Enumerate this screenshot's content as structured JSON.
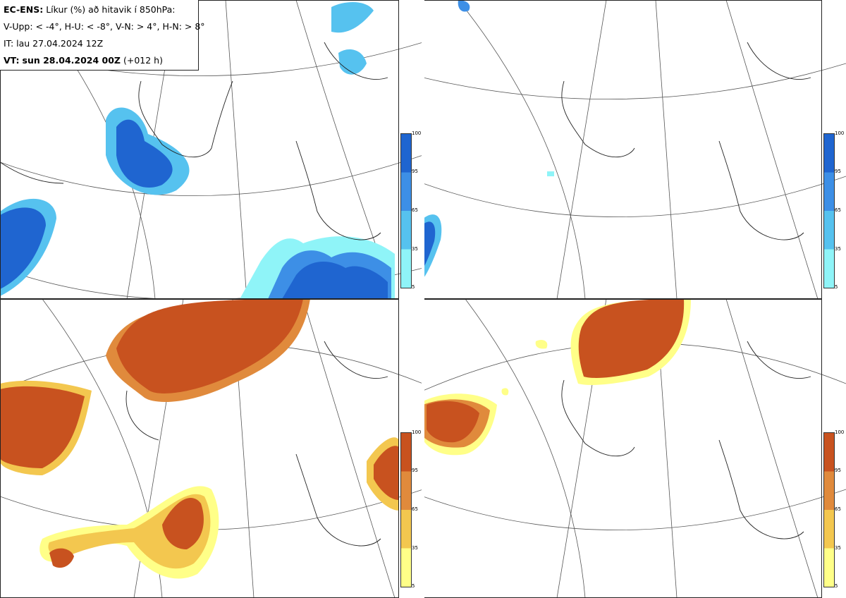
{
  "header": {
    "title_bold": "EC-ENS:",
    "title_rest": "Líkur (%) að hitavik í 850hPa:",
    "thresholds": "V-Upp: < -4°, H-U: < -8°, V-N: > 4°, H-N: > 8°",
    "issue_time": "IT: lau 27.04.2024 12Z",
    "valid_label": "VT:",
    "valid_time": "sun 28.04.2024 00Z",
    "lead": "(+012 h)"
  },
  "panels": [
    {
      "id": "V-Upp",
      "quantity": "probability temperature anomaly < -4°",
      "palette": "cold"
    },
    {
      "id": "H-U",
      "quantity": "probability temperature anomaly < -8°",
      "palette": "cold"
    },
    {
      "id": "V-N",
      "quantity": "probability temperature anomaly > 4°",
      "palette": "warm"
    },
    {
      "id": "H-N",
      "quantity": "probability temperature anomaly > 8°",
      "palette": "warm"
    }
  ],
  "colorbar": {
    "ticks": [
      "100",
      "95",
      "65",
      "35",
      "5"
    ],
    "cold_colors": [
      "#1f65d0",
      "#3d8fe6",
      "#56c2ef",
      "#8ff4f8"
    ],
    "warm_colors": [
      "#c8521f",
      "#e08a3c",
      "#f3c74f",
      "#ffff88"
    ]
  }
}
